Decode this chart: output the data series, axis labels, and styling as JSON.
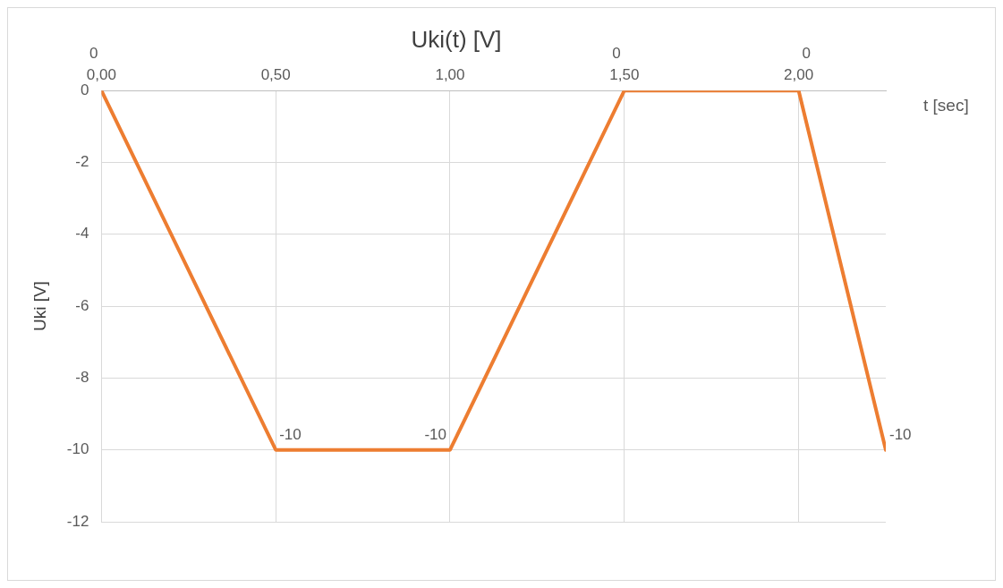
{
  "chart_data": {
    "type": "line",
    "title": "Uki(t) [V]",
    "xlabel": "t [sec]",
    "ylabel": "Uki [V]",
    "x": [
      0,
      0.5,
      1,
      1.5,
      2,
      2.25
    ],
    "values": [
      0,
      -10,
      -10,
      0,
      0,
      -10
    ],
    "color": "#ed7d31",
    "xlim": [
      0,
      2.25
    ],
    "xticks": [
      {
        "value": 0,
        "label": "0,00"
      },
      {
        "value": 0.5,
        "label": "0,50"
      },
      {
        "value": 1,
        "label": "1,00"
      },
      {
        "value": 1.5,
        "label": "1,50"
      },
      {
        "value": 2,
        "label": "2,00"
      }
    ],
    "ylim": [
      -12,
      0
    ],
    "yticks": [
      -12,
      -10,
      -8,
      -6,
      -4,
      -2,
      0
    ],
    "grid": true,
    "marker": "none",
    "line_style": "solid",
    "data_labels": true
  }
}
